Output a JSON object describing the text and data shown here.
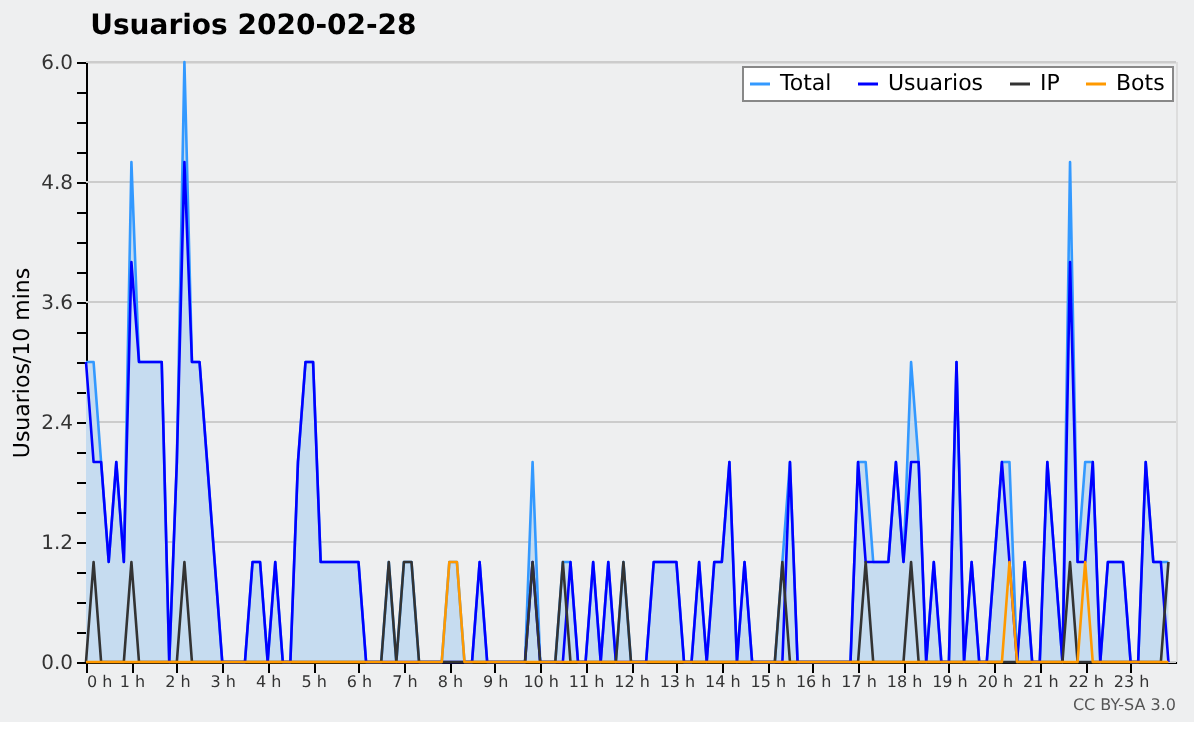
{
  "chart_data": {
    "type": "line",
    "title": "Usuarios  2020-02-28",
    "ylabel": "Usuarios/10 mins",
    "annotations": [
      "CC BY-SA 3.0"
    ],
    "x": [
      0,
      0.167,
      0.333,
      0.5,
      0.667,
      0.833,
      1,
      1.167,
      1.333,
      1.5,
      1.667,
      1.833,
      2,
      2.167,
      2.333,
      2.5,
      2.667,
      2.833,
      3,
      3.167,
      3.333,
      3.5,
      3.667,
      3.833,
      4,
      4.167,
      4.333,
      4.5,
      4.667,
      4.833,
      5,
      5.167,
      5.333,
      5.5,
      5.667,
      5.833,
      6,
      6.167,
      6.333,
      6.5,
      6.667,
      6.833,
      7,
      7.167,
      7.333,
      7.5,
      7.667,
      7.833,
      8,
      8.167,
      8.333,
      8.5,
      8.667,
      8.833,
      9,
      9.167,
      9.333,
      9.5,
      9.667,
      9.833,
      10,
      10.167,
      10.333,
      10.5,
      10.667,
      10.833,
      11,
      11.167,
      11.333,
      11.5,
      11.667,
      11.833,
      12,
      12.167,
      12.333,
      12.5,
      12.667,
      12.833,
      13,
      13.167,
      13.333,
      13.5,
      13.667,
      13.833,
      14,
      14.167,
      14.333,
      14.5,
      14.667,
      14.833,
      15,
      15.167,
      15.333,
      15.5,
      15.667,
      15.833,
      16,
      16.167,
      16.333,
      16.5,
      16.667,
      16.833,
      17,
      17.167,
      17.333,
      17.5,
      17.667,
      17.833,
      18,
      18.167,
      18.333,
      18.5,
      18.667,
      18.833,
      19,
      19.167,
      19.333,
      19.5,
      19.667,
      19.833,
      20,
      20.167,
      20.333,
      20.5,
      20.667,
      20.833,
      21,
      21.167,
      21.333,
      21.5,
      21.667,
      21.833,
      22,
      22.167,
      22.333,
      22.5,
      22.667,
      22.833,
      23,
      23.167,
      23.333,
      23.5,
      23.667,
      23.833
    ],
    "series": [
      {
        "name": "Total",
        "type": "area",
        "color": "#3399ff",
        "values": [
          3,
          3,
          2,
          1,
          2,
          1,
          5,
          3,
          3,
          3,
          3,
          0,
          2,
          6,
          3,
          3,
          2,
          1,
          0,
          0,
          0,
          0,
          1,
          1,
          0,
          1,
          0,
          0,
          2,
          3,
          3,
          1,
          1,
          1,
          1,
          1,
          1,
          0,
          0,
          0,
          1,
          0,
          1,
          1,
          0,
          0,
          0,
          0,
          1,
          1,
          0,
          0,
          1,
          0,
          0,
          0,
          0,
          0,
          0,
          2,
          0,
          0,
          0,
          1,
          1,
          0,
          0,
          1,
          0,
          1,
          0,
          1,
          0,
          0,
          0,
          1,
          1,
          1,
          1,
          0,
          0,
          1,
          0,
          1,
          1,
          2,
          0,
          1,
          0,
          0,
          0,
          0,
          1,
          2,
          0,
          0,
          0,
          0,
          0,
          0,
          0,
          0,
          2,
          2,
          1,
          1,
          1,
          2,
          1,
          3,
          2,
          0,
          1,
          0,
          0,
          3,
          0,
          1,
          0,
          0,
          1,
          2,
          2,
          0,
          1,
          0,
          0,
          2,
          1,
          0,
          5,
          1,
          2,
          2,
          0,
          1,
          1,
          1,
          0,
          0,
          2,
          1,
          1,
          1
        ]
      },
      {
        "name": "Usuarios",
        "type": "line",
        "color": "#0000ff",
        "values": [
          3,
          2,
          2,
          1,
          2,
          1,
          4,
          3,
          3,
          3,
          3,
          0,
          2,
          5,
          3,
          3,
          2,
          1,
          0,
          0,
          0,
          0,
          1,
          1,
          0,
          1,
          0,
          0,
          2,
          3,
          3,
          1,
          1,
          1,
          1,
          1,
          1,
          0,
          0,
          0,
          0,
          0,
          0,
          0,
          0,
          0,
          0,
          0,
          0,
          0,
          0,
          0,
          1,
          0,
          0,
          0,
          0,
          0,
          0,
          1,
          0,
          0,
          0,
          0,
          1,
          0,
          0,
          1,
          0,
          1,
          0,
          0,
          0,
          0,
          0,
          1,
          1,
          1,
          1,
          0,
          0,
          1,
          0,
          1,
          1,
          2,
          0,
          1,
          0,
          0,
          0,
          0,
          0,
          2,
          0,
          0,
          0,
          0,
          0,
          0,
          0,
          0,
          2,
          1,
          1,
          1,
          1,
          2,
          1,
          2,
          2,
          0,
          1,
          0,
          0,
          3,
          0,
          1,
          0,
          0,
          1,
          2,
          1,
          0,
          1,
          0,
          0,
          2,
          1,
          0,
          4,
          1,
          1,
          2,
          0,
          1,
          1,
          1,
          0,
          0,
          2,
          1,
          1,
          0
        ]
      },
      {
        "name": "IP",
        "type": "line",
        "color": "#333333",
        "values": [
          0,
          1,
          0,
          0,
          0,
          0,
          1,
          0,
          0,
          0,
          0,
          0,
          0,
          1,
          0,
          0,
          0,
          0,
          0,
          0,
          0,
          0,
          0,
          0,
          0,
          0,
          0,
          0,
          0,
          0,
          0,
          0,
          0,
          0,
          0,
          0,
          0,
          0,
          0,
          0,
          1,
          0,
          1,
          1,
          0,
          0,
          0,
          0,
          0,
          0,
          0,
          0,
          0,
          0,
          0,
          0,
          0,
          0,
          0,
          1,
          0,
          0,
          0,
          1,
          0,
          0,
          0,
          0,
          0,
          0,
          0,
          1,
          0,
          0,
          0,
          0,
          0,
          0,
          0,
          0,
          0,
          0,
          0,
          0,
          0,
          0,
          0,
          0,
          0,
          0,
          0,
          0,
          1,
          0,
          0,
          0,
          0,
          0,
          0,
          0,
          0,
          0,
          0,
          1,
          0,
          0,
          0,
          0,
          0,
          1,
          0,
          0,
          0,
          0,
          0,
          0,
          0,
          0,
          0,
          0,
          0,
          0,
          0,
          0,
          0,
          0,
          0,
          0,
          0,
          0,
          1,
          0,
          0,
          0,
          0,
          0,
          0,
          0,
          0,
          0,
          0,
          0,
          0,
          1
        ]
      },
      {
        "name": "Bots",
        "type": "line",
        "color": "#ff9900",
        "values": [
          0,
          0,
          0,
          0,
          0,
          0,
          0,
          0,
          0,
          0,
          0,
          0,
          0,
          0,
          0,
          0,
          0,
          0,
          0,
          0,
          0,
          0,
          0,
          0,
          0,
          0,
          0,
          0,
          0,
          0,
          0,
          0,
          0,
          0,
          0,
          0,
          0,
          0,
          0,
          0,
          0,
          0,
          0,
          0,
          0,
          0,
          0,
          0,
          1,
          1,
          0,
          0,
          0,
          0,
          0,
          0,
          0,
          0,
          0,
          0,
          0,
          0,
          0,
          0,
          0,
          0,
          0,
          0,
          0,
          0,
          0,
          0,
          0,
          0,
          0,
          0,
          0,
          0,
          0,
          0,
          0,
          0,
          0,
          0,
          0,
          0,
          0,
          0,
          0,
          0,
          0,
          0,
          0,
          0,
          0,
          0,
          0,
          0,
          0,
          0,
          0,
          0,
          0,
          0,
          0,
          0,
          0,
          0,
          0,
          0,
          0,
          0,
          0,
          0,
          0,
          0,
          0,
          0,
          0,
          0,
          0,
          0,
          1,
          0,
          0,
          0,
          0,
          0,
          0,
          0,
          0,
          0,
          1,
          0,
          0,
          0,
          0,
          0,
          0,
          0,
          0,
          0,
          0,
          0
        ]
      }
    ],
    "xlim": [
      0,
      24
    ],
    "xticks": [
      {
        "value": 0,
        "label": "0 h"
      },
      {
        "value": 1,
        "label": "1 h"
      },
      {
        "value": 2,
        "label": "2 h"
      },
      {
        "value": 3,
        "label": "3 h"
      },
      {
        "value": 4,
        "label": "4 h"
      },
      {
        "value": 5,
        "label": "5 h"
      },
      {
        "value": 6,
        "label": "6 h"
      },
      {
        "value": 7,
        "label": "7 h"
      },
      {
        "value": 8,
        "label": "8 h"
      },
      {
        "value": 9,
        "label": "9 h"
      },
      {
        "value": 10,
        "label": "10 h"
      },
      {
        "value": 11,
        "label": "11 h"
      },
      {
        "value": 12,
        "label": "12 h"
      },
      {
        "value": 13,
        "label": "13 h"
      },
      {
        "value": 14,
        "label": "14 h"
      },
      {
        "value": 15,
        "label": "15 h"
      },
      {
        "value": 16,
        "label": "16 h"
      },
      {
        "value": 17,
        "label": "17 h"
      },
      {
        "value": 18,
        "label": "18 h"
      },
      {
        "value": 19,
        "label": "19 h"
      },
      {
        "value": 20,
        "label": "20 h"
      },
      {
        "value": 21,
        "label": "21 h"
      },
      {
        "value": 22,
        "label": "22 h"
      },
      {
        "value": 23,
        "label": "23 h"
      }
    ],
    "ylim": [
      0,
      6
    ],
    "yticks": [
      {
        "value": 0,
        "label": "0.0"
      },
      {
        "value": 0.3,
        "label": null
      },
      {
        "value": 0.6,
        "label": null
      },
      {
        "value": 0.9,
        "label": null
      },
      {
        "value": 1.2,
        "label": "1.2"
      },
      {
        "value": 1.5,
        "label": null
      },
      {
        "value": 1.8,
        "label": null
      },
      {
        "value": 2.1,
        "label": null
      },
      {
        "value": 2.4,
        "label": "2.4"
      },
      {
        "value": 2.7,
        "label": null
      },
      {
        "value": 3.0,
        "label": null
      },
      {
        "value": 3.3,
        "label": null
      },
      {
        "value": 3.6,
        "label": "3.6"
      },
      {
        "value": 3.9,
        "label": null
      },
      {
        "value": 4.2,
        "label": null
      },
      {
        "value": 4.5,
        "label": null
      },
      {
        "value": 4.8,
        "label": "4.8"
      },
      {
        "value": 5.1,
        "label": null
      },
      {
        "value": 5.4,
        "label": null
      },
      {
        "value": 5.7,
        "label": null
      },
      {
        "value": 6,
        "label": "6.0"
      }
    ],
    "grid": "y",
    "legend": "top right",
    "marker": "none",
    "line_style": "solid"
  }
}
